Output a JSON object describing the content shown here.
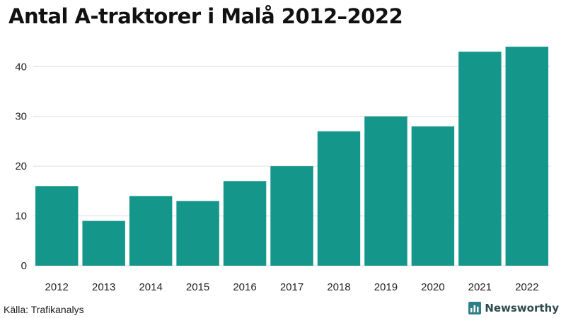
{
  "title": "Antal A-traktorer i Malå 2012–2022",
  "source": "Källa: Trafikanalys",
  "brand": {
    "name": "Newsworthy",
    "icon": "newsworthy-logo-icon",
    "color": "#2f4a4e"
  },
  "chart_data": {
    "type": "bar",
    "categories": [
      "2012",
      "2013",
      "2014",
      "2015",
      "2016",
      "2017",
      "2018",
      "2019",
      "2020",
      "2021",
      "2022"
    ],
    "values": [
      16,
      9,
      14,
      13,
      17,
      20,
      27,
      30,
      28,
      43,
      44
    ],
    "title": "Antal A-traktorer i Malå 2012–2022",
    "xlabel": "",
    "ylabel": "",
    "ylim": [
      0,
      46
    ],
    "yticks": [
      0,
      10,
      20,
      30,
      40
    ],
    "grid": true,
    "bar_color": "#14968a",
    "grid_color": "#dddddd"
  }
}
